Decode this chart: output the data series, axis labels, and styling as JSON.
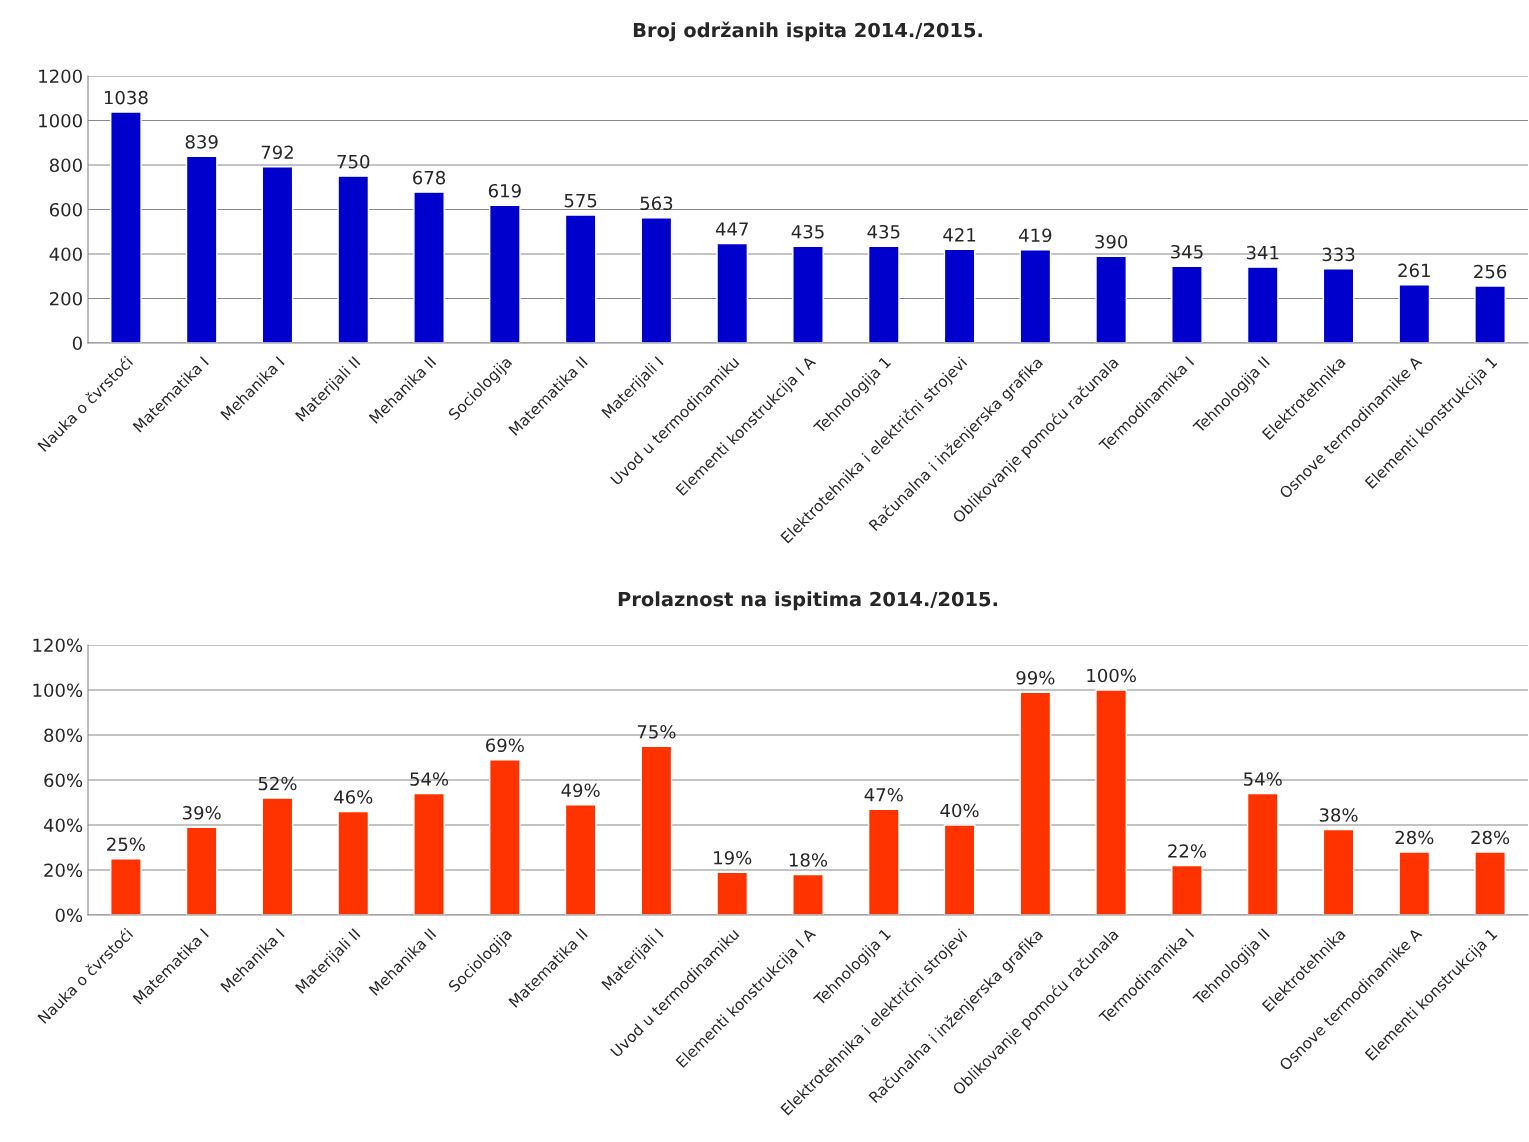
{
  "chart_data": [
    {
      "type": "bar",
      "title": "Broj održanih ispita 2014./2015.",
      "categories": [
        "Nauka o čvrstoći",
        "Matematika I",
        "Mehanika I",
        "Materijali II",
        "Mehanika II",
        "Sociologija",
        "Matematika II",
        "Materijali I",
        "Uvod u termodinamiku",
        "Elementi konstrukcija I A",
        "Tehnologija 1",
        "Elektrotehnika i električni strojevi",
        "Računalna i inženjerska grafika",
        "Oblikovanje pomoću računala",
        "Termodinamika I",
        "Tehnologija II",
        "Elektrotehnika",
        "Osnove termodinamike A",
        "Elementi konstrukcija 1"
      ],
      "values": [
        1038,
        839,
        792,
        750,
        678,
        619,
        575,
        563,
        447,
        435,
        435,
        421,
        419,
        390,
        345,
        341,
        333,
        261,
        256
      ],
      "color": "#0000cc",
      "ylim": [
        0,
        1200
      ],
      "yticks": [
        0,
        200,
        400,
        600,
        800,
        1000,
        1200
      ],
      "grid": "y",
      "data_labels": true,
      "legend": false
    },
    {
      "type": "bar",
      "title": "Prolaznost na ispitima 2014./2015.",
      "categories": [
        "Nauka o čvrstoći",
        "Matematika I",
        "Mehanika I",
        "Materijali II",
        "Mehanika II",
        "Sociologija",
        "Matematika II",
        "Materijali I",
        "Uvod u termodinamiku",
        "Elementi konstrukcija I A",
        "Tehnologija 1",
        "Elektrotehnika i električni strojevi",
        "Računalna i inženjerska grafika",
        "Oblikovanje pomoću računala",
        "Termodinamika I",
        "Tehnologija II",
        "Elektrotehnika",
        "Osnove termodinamike A",
        "Elementi konstrukcija 1"
      ],
      "values": [
        25,
        39,
        52,
        46,
        54,
        69,
        49,
        75,
        19,
        18,
        47,
        40,
        99,
        100,
        22,
        54,
        38,
        28,
        28
      ],
      "value_labels": [
        "25%",
        "39%",
        "52%",
        "46%",
        "54%",
        "69%",
        "49%",
        "75%",
        "19%",
        "18%",
        "47%",
        "40%",
        "99%",
        "100%",
        "22%",
        "54%",
        "38%",
        "28%",
        "28%"
      ],
      "color": "#ff3300",
      "ylim": [
        0,
        120
      ],
      "yticks": [
        {
          "value": 0,
          "label": "0%"
        },
        {
          "value": 20,
          "label": "20%"
        },
        {
          "value": 40,
          "label": "40%"
        },
        {
          "value": 60,
          "label": "60%"
        },
        {
          "value": 80,
          "label": "80%"
        },
        {
          "value": 100,
          "label": "100%"
        },
        {
          "value": 120,
          "label": "120%"
        }
      ],
      "grid": "y",
      "legend": false
    }
  ]
}
